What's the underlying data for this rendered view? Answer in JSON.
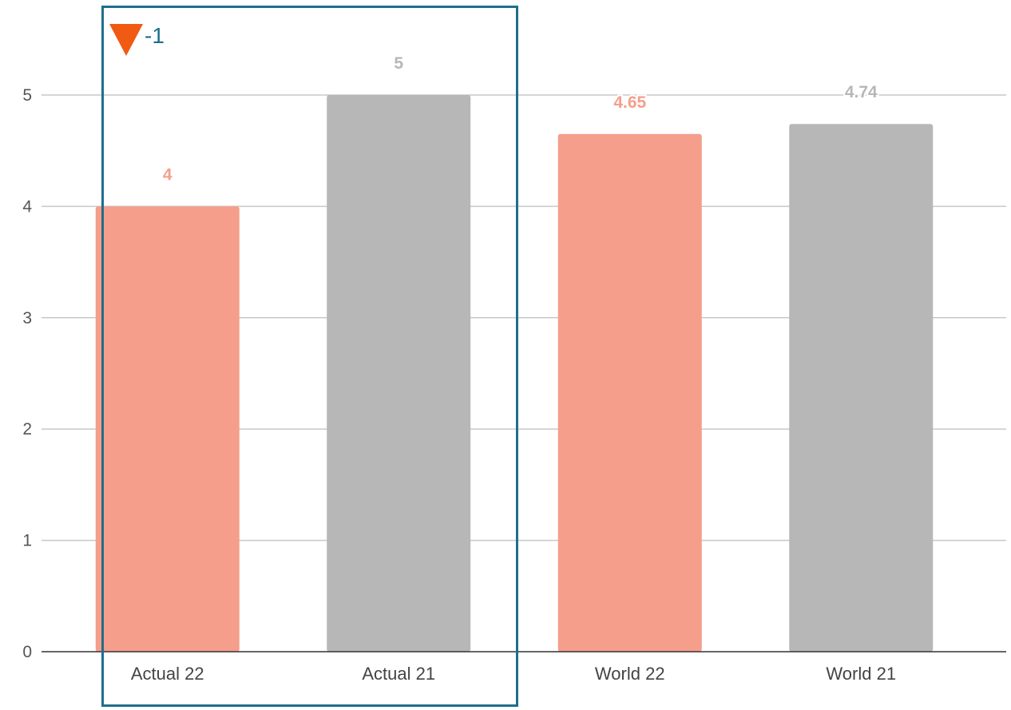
{
  "chart_data": {
    "type": "bar",
    "categories": [
      "Actual 22",
      "Actual 21",
      "World 22",
      "World 21"
    ],
    "values": [
      4,
      5,
      4.65,
      4.74
    ],
    "data_labels": [
      "4",
      "5",
      "4.65",
      "4.74"
    ],
    "bar_colors": [
      "#f59e8c",
      "#b7b7b7",
      "#f59e8c",
      "#b7b7b7"
    ],
    "label_colors": [
      "#f59e8c",
      "#b7b7b7",
      "#f59e8c",
      "#b7b7b7"
    ],
    "ylim": [
      0,
      5
    ],
    "yticks": [
      "0",
      "1",
      "2",
      "3",
      "4",
      "5"
    ],
    "grid": true,
    "title": "",
    "xlabel": "",
    "ylabel": ""
  },
  "highlight": {
    "delta_value": "-1",
    "delta_icon": "down-triangle-icon",
    "icon_color": "#f05a12",
    "box_color": "#1f6e8c"
  }
}
